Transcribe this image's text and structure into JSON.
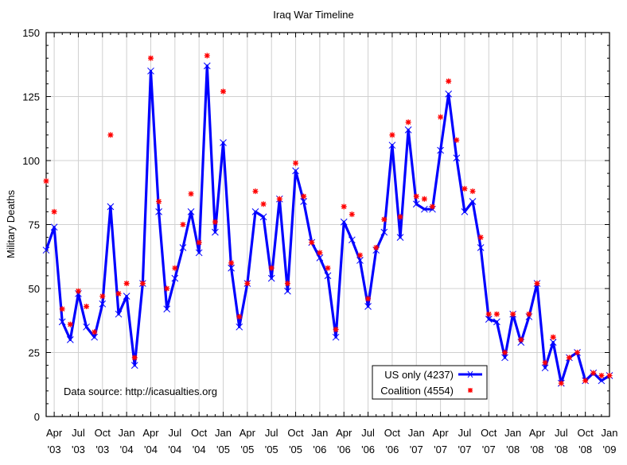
{
  "chart_data": {
    "type": "line",
    "title": "Iraq War Timeline",
    "xlabel": "",
    "ylabel": "Military Deaths",
    "ylim": [
      0,
      150
    ],
    "yticks": [
      0,
      25,
      50,
      75,
      100,
      125,
      150
    ],
    "x_start": "Mar 2003",
    "x_end": "Jan 2009",
    "xtick_labels": [
      [
        "Apr",
        "'03"
      ],
      [
        "Jul",
        "'03"
      ],
      [
        "Oct",
        "'03"
      ],
      [
        "Jan",
        "'04"
      ],
      [
        "Apr",
        "'04"
      ],
      [
        "Jul",
        "'04"
      ],
      [
        "Oct",
        "'04"
      ],
      [
        "Jan",
        "'05"
      ],
      [
        "Apr",
        "'05"
      ],
      [
        "Jul",
        "'05"
      ],
      [
        "Oct",
        "'05"
      ],
      [
        "Jan",
        "'06"
      ],
      [
        "Apr",
        "'06"
      ],
      [
        "Jul",
        "'06"
      ],
      [
        "Oct",
        "'06"
      ],
      [
        "Jan",
        "'07"
      ],
      [
        "Apr",
        "'07"
      ],
      [
        "Jul",
        "'07"
      ],
      [
        "Oct",
        "'07"
      ],
      [
        "Jan",
        "'08"
      ],
      [
        "Apr",
        "'08"
      ],
      [
        "Jul",
        "'08"
      ],
      [
        "Oct",
        "'08"
      ],
      [
        "Jan",
        "'09"
      ]
    ],
    "grid": true,
    "legend_position": "bottom-right",
    "annotation": "Data source: http://icasualties.org",
    "series": [
      {
        "name": "US only (4237)",
        "style": "line-with-x-markers",
        "color": "#0000ff",
        "values": [
          65,
          74,
          37,
          30,
          48,
          35,
          31,
          44,
          82,
          40,
          47,
          20,
          52,
          135,
          80,
          42,
          54,
          66,
          80,
          64,
          137,
          72,
          107,
          58,
          35,
          52,
          80,
          78,
          54,
          85,
          49,
          96,
          84,
          68,
          62,
          55,
          31,
          76,
          69,
          61,
          43,
          65,
          72,
          106,
          70,
          112,
          83,
          81,
          81,
          104,
          126,
          101,
          80,
          84,
          66,
          38,
          37,
          23,
          40,
          29,
          39,
          52,
          19,
          29,
          13,
          23,
          25,
          14,
          17,
          14,
          16
        ]
      },
      {
        "name": "Coalition (4554)",
        "style": "star-points",
        "color": "#ff0000",
        "values": [
          92,
          80,
          42,
          36,
          49,
          43,
          33,
          47,
          110,
          48,
          52,
          23,
          52,
          140,
          84,
          50,
          58,
          75,
          87,
          68,
          141,
          76,
          127,
          60,
          39,
          52,
          88,
          83,
          58,
          85,
          52,
          99,
          86,
          68,
          64,
          58,
          34,
          82,
          79,
          63,
          46,
          66,
          77,
          110,
          78,
          115,
          86,
          85,
          82,
          117,
          131,
          108,
          89,
          88,
          70,
          40,
          40,
          25,
          40,
          30,
          40,
          52,
          21,
          31,
          13,
          23,
          25,
          14,
          17,
          16,
          16
        ]
      }
    ]
  }
}
